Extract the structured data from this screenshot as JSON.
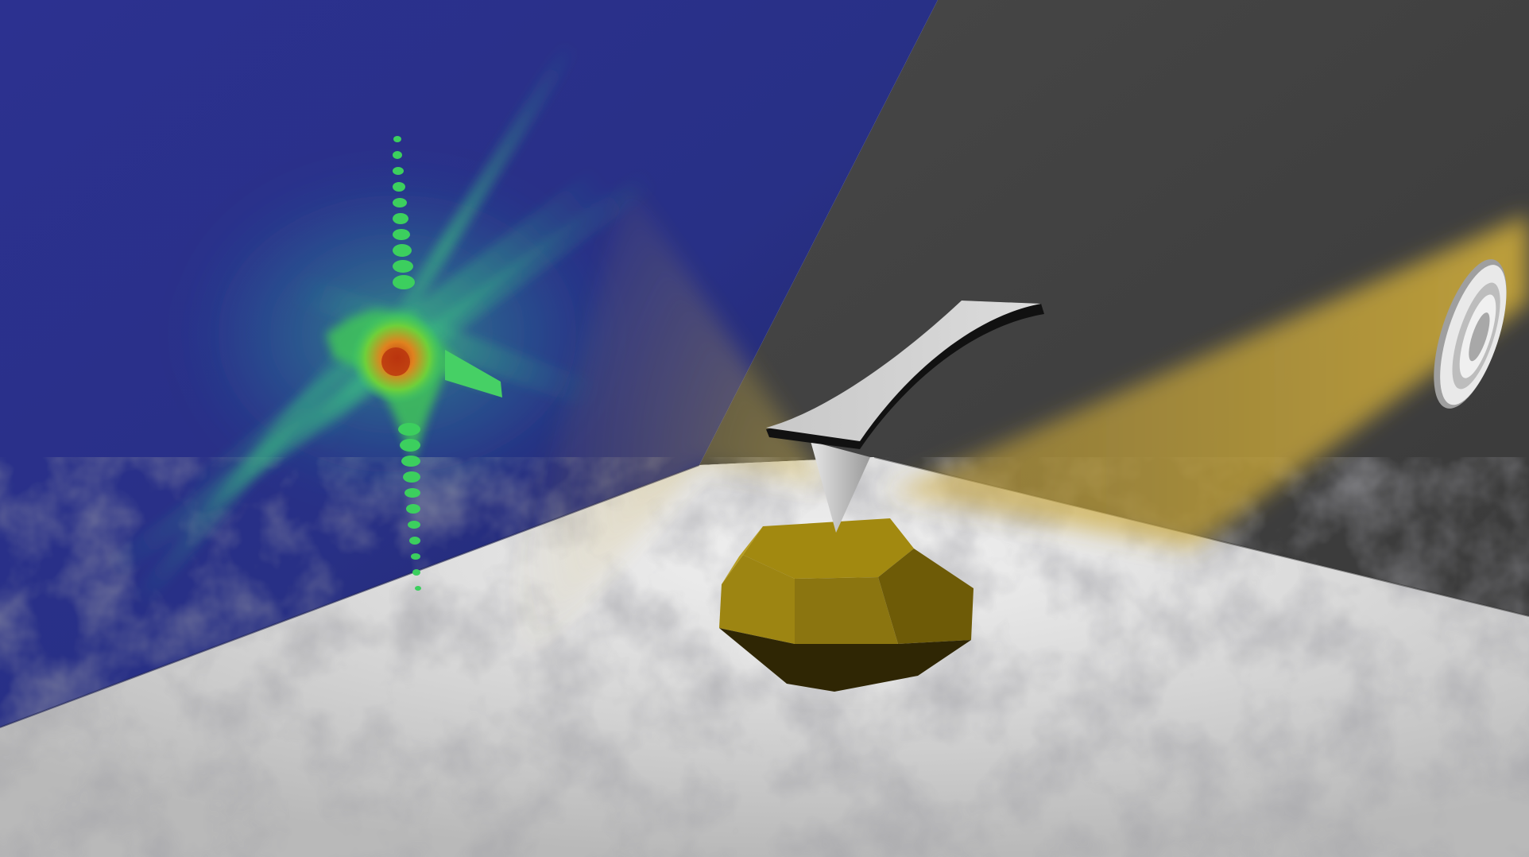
{
  "scene": {
    "colors": {
      "left_wall": "#2a2f86",
      "right_wall": "#3f3f3f",
      "floor": "#cfcfcf",
      "beam": "#c9a537",
      "crystal": "#8a7210",
      "crystal_dark": "#3a2f05",
      "crystal_light": "#b39a1c",
      "cantilever": "#d2d2d2",
      "tip": "#cccccc",
      "detector_ring": "#e8e8e8",
      "pattern_green": "#39c96a",
      "pattern_teal": "#2aa7a0",
      "pattern_core": "#d8581c"
    },
    "objects": [
      "left-wall",
      "right-wall",
      "floor",
      "diffraction-pattern",
      "xray-beam",
      "afm-cantilever",
      "afm-tip",
      "gold-nanocrystal",
      "detector-aperture"
    ]
  }
}
